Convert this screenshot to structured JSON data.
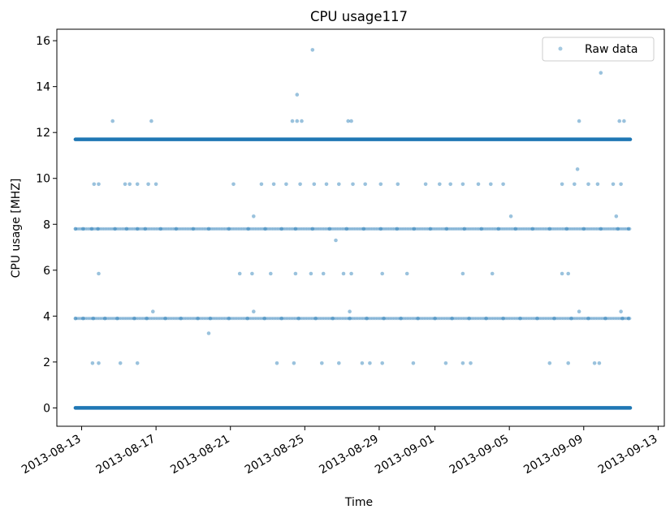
{
  "chart_data": {
    "type": "scatter",
    "title": "CPU usage117",
    "xlabel": "Time",
    "ylabel": "CPU usage [MHZ]",
    "x_range": [
      "2013-08-11T16:00",
      "2013-09-13T08:00"
    ],
    "x_data_range": [
      "2013-08-12T16:00",
      "2013-09-11T12:00"
    ],
    "ylim": [
      -0.8,
      16.5
    ],
    "x_ticks": [
      "2013-08-13",
      "2013-08-17",
      "2013-08-21",
      "2013-08-25",
      "2013-08-29",
      "2013-09-01",
      "2013-09-05",
      "2013-09-09",
      "2013-09-13"
    ],
    "y_ticks": [
      0,
      2,
      4,
      6,
      8,
      10,
      12,
      14,
      16
    ],
    "grid": false,
    "legend": {
      "position": "top-right",
      "entries": [
        "Raw data"
      ]
    },
    "marker_color": "#1f77b4",
    "series": [
      {
        "name": "Raw data",
        "dense_levels": [
          0,
          11.7
        ],
        "frequent_levels": [
          3.9,
          7.8
        ],
        "points": [
          [
            "2013-08-12T16:00",
            7.8
          ],
          [
            "2013-08-13T02:00",
            7.8
          ],
          [
            "2013-08-13T13:00",
            7.8
          ],
          [
            "2013-08-13T21:00",
            7.8
          ],
          [
            "2013-08-14T19:00",
            7.8
          ],
          [
            "2013-08-15T10:00",
            7.8
          ],
          [
            "2013-08-16T00:00",
            7.8
          ],
          [
            "2013-08-16T10:00",
            7.8
          ],
          [
            "2013-08-17T06:00",
            7.8
          ],
          [
            "2013-08-18T02:00",
            7.8
          ],
          [
            "2013-08-19T00:00",
            7.8
          ],
          [
            "2013-08-19T20:00",
            7.8
          ],
          [
            "2013-08-20T22:00",
            7.8
          ],
          [
            "2013-08-21T23:00",
            7.8
          ],
          [
            "2013-08-22T21:00",
            7.8
          ],
          [
            "2013-08-23T18:00",
            7.8
          ],
          [
            "2013-08-24T12:00",
            7.8
          ],
          [
            "2013-08-25T10:00",
            7.8
          ],
          [
            "2013-08-26T08:00",
            7.8
          ],
          [
            "2013-08-27T06:00",
            7.8
          ],
          [
            "2013-08-28T04:00",
            7.8
          ],
          [
            "2013-08-29T02:00",
            7.8
          ],
          [
            "2013-08-29T23:00",
            7.8
          ],
          [
            "2013-08-30T21:00",
            7.8
          ],
          [
            "2013-08-31T18:00",
            7.8
          ],
          [
            "2013-09-01T15:00",
            7.8
          ],
          [
            "2013-09-02T14:00",
            7.8
          ],
          [
            "2013-09-03T12:00",
            7.8
          ],
          [
            "2013-09-04T10:00",
            7.8
          ],
          [
            "2013-09-05T08:00",
            7.8
          ],
          [
            "2013-09-06T06:00",
            7.8
          ],
          [
            "2013-09-07T04:00",
            7.8
          ],
          [
            "2013-09-08T02:00",
            7.8
          ],
          [
            "2013-09-09T00:00",
            7.8
          ],
          [
            "2013-09-09T22:00",
            7.8
          ],
          [
            "2013-09-10T20:00",
            7.8
          ],
          [
            "2013-09-11T10:00",
            7.8
          ],
          [
            "2013-08-12T16:00",
            3.9
          ],
          [
            "2013-08-13T02:00",
            3.9
          ],
          [
            "2013-08-13T15:00",
            3.9
          ],
          [
            "2013-08-14T06:00",
            3.9
          ],
          [
            "2013-08-14T22:00",
            3.9
          ],
          [
            "2013-08-15T20:00",
            3.9
          ],
          [
            "2013-08-16T12:00",
            3.9
          ],
          [
            "2013-08-17T12:00",
            3.9
          ],
          [
            "2013-08-18T08:00",
            3.9
          ],
          [
            "2013-08-19T06:00",
            3.9
          ],
          [
            "2013-08-19T22:00",
            3.9
          ],
          [
            "2013-08-20T22:00",
            3.9
          ],
          [
            "2013-08-21T22:00",
            3.9
          ],
          [
            "2013-08-22T20:00",
            3.9
          ],
          [
            "2013-08-23T18:00",
            3.9
          ],
          [
            "2013-08-24T16:00",
            3.9
          ],
          [
            "2013-08-25T14:00",
            3.9
          ],
          [
            "2013-08-26T12:00",
            3.9
          ],
          [
            "2013-08-27T10:00",
            3.9
          ],
          [
            "2013-08-28T08:00",
            3.9
          ],
          [
            "2013-08-29T06:00",
            3.9
          ],
          [
            "2013-08-30T04:00",
            3.9
          ],
          [
            "2013-08-31T02:00",
            3.9
          ],
          [
            "2013-09-01T00:00",
            3.9
          ],
          [
            "2013-09-01T22:00",
            3.9
          ],
          [
            "2013-09-02T20:00",
            3.9
          ],
          [
            "2013-09-03T18:00",
            3.9
          ],
          [
            "2013-09-04T16:00",
            3.9
          ],
          [
            "2013-09-05T14:00",
            3.9
          ],
          [
            "2013-09-06T12:00",
            3.9
          ],
          [
            "2013-09-07T10:00",
            3.9
          ],
          [
            "2013-09-08T08:00",
            3.9
          ],
          [
            "2013-09-09T06:00",
            3.9
          ],
          [
            "2013-09-10T04:00",
            3.9
          ],
          [
            "2013-09-11T02:00",
            3.9
          ],
          [
            "2013-09-11T10:00",
            3.9
          ],
          [
            "2013-08-13T16:00",
            9.75
          ],
          [
            "2013-08-13T22:00",
            9.75
          ],
          [
            "2013-08-15T08:00",
            9.75
          ],
          [
            "2013-08-15T14:00",
            9.75
          ],
          [
            "2013-08-16T00:00",
            9.75
          ],
          [
            "2013-08-16T14:00",
            9.75
          ],
          [
            "2013-08-17T00:00",
            9.75
          ],
          [
            "2013-08-21T04:00",
            9.75
          ],
          [
            "2013-08-22T16:00",
            9.75
          ],
          [
            "2013-08-23T08:00",
            9.75
          ],
          [
            "2013-08-24T00:00",
            9.75
          ],
          [
            "2013-08-24T18:00",
            9.75
          ],
          [
            "2013-08-25T12:00",
            9.75
          ],
          [
            "2013-08-26T04:00",
            9.75
          ],
          [
            "2013-08-26T20:00",
            9.75
          ],
          [
            "2013-08-27T14:00",
            9.75
          ],
          [
            "2013-08-28T06:00",
            9.75
          ],
          [
            "2013-08-29T02:00",
            9.75
          ],
          [
            "2013-08-30T00:00",
            9.75
          ],
          [
            "2013-08-31T12:00",
            9.75
          ],
          [
            "2013-09-01T06:00",
            9.75
          ],
          [
            "2013-09-01T20:00",
            9.75
          ],
          [
            "2013-09-02T12:00",
            9.75
          ],
          [
            "2013-09-03T08:00",
            9.75
          ],
          [
            "2013-09-04T00:00",
            9.75
          ],
          [
            "2013-09-04T16:00",
            9.75
          ],
          [
            "2013-09-07T20:00",
            9.75
          ],
          [
            "2013-09-08T12:00",
            9.75
          ],
          [
            "2013-09-09T06:00",
            9.75
          ],
          [
            "2013-09-09T18:00",
            9.75
          ],
          [
            "2013-09-10T14:00",
            9.75
          ],
          [
            "2013-09-11T00:00",
            9.75
          ],
          [
            "2013-08-13T22:00",
            5.85
          ],
          [
            "2013-08-21T12:00",
            5.85
          ],
          [
            "2013-08-22T04:00",
            5.85
          ],
          [
            "2013-08-23T04:00",
            5.85
          ],
          [
            "2013-08-24T12:00",
            5.85
          ],
          [
            "2013-08-25T08:00",
            5.85
          ],
          [
            "2013-08-26T00:00",
            5.85
          ],
          [
            "2013-08-27T02:00",
            5.85
          ],
          [
            "2013-08-27T12:00",
            5.85
          ],
          [
            "2013-08-29T04:00",
            5.85
          ],
          [
            "2013-08-30T12:00",
            5.85
          ],
          [
            "2013-09-02T12:00",
            5.85
          ],
          [
            "2013-09-04T02:00",
            5.85
          ],
          [
            "2013-09-07T20:00",
            5.85
          ],
          [
            "2013-09-08T04:00",
            5.85
          ],
          [
            "2013-08-13T14:00",
            1.95
          ],
          [
            "2013-08-13T22:00",
            1.95
          ],
          [
            "2013-08-15T02:00",
            1.95
          ],
          [
            "2013-08-16T00:00",
            1.95
          ],
          [
            "2013-08-23T12:00",
            1.95
          ],
          [
            "2013-08-24T10:00",
            1.95
          ],
          [
            "2013-08-25T22:00",
            1.95
          ],
          [
            "2013-08-26T20:00",
            1.95
          ],
          [
            "2013-08-28T02:00",
            1.95
          ],
          [
            "2013-08-28T12:00",
            1.95
          ],
          [
            "2013-08-29T04:00",
            1.95
          ],
          [
            "2013-08-30T20:00",
            1.95
          ],
          [
            "2013-09-01T14:00",
            1.95
          ],
          [
            "2013-09-02T12:00",
            1.95
          ],
          [
            "2013-09-02T22:00",
            1.95
          ],
          [
            "2013-09-07T04:00",
            1.95
          ],
          [
            "2013-09-08T04:00",
            1.95
          ],
          [
            "2013-09-09T14:00",
            1.95
          ],
          [
            "2013-09-09T20:00",
            1.95
          ],
          [
            "2013-08-14T16:00",
            12.5
          ],
          [
            "2013-08-16T18:00",
            12.5
          ],
          [
            "2013-08-24T08:00",
            12.5
          ],
          [
            "2013-08-24T14:00",
            12.5
          ],
          [
            "2013-08-24T20:00",
            12.5
          ],
          [
            "2013-08-27T08:00",
            12.5
          ],
          [
            "2013-08-27T12:00",
            12.5
          ],
          [
            "2013-09-08T18:00",
            12.5
          ],
          [
            "2013-09-10T22:00",
            12.5
          ],
          [
            "2013-09-11T04:00",
            12.5
          ],
          [
            "2013-08-16T20:00",
            4.2
          ],
          [
            "2013-08-22T06:00",
            4.2
          ],
          [
            "2013-08-27T10:00",
            4.2
          ],
          [
            "2013-09-08T18:00",
            4.2
          ],
          [
            "2013-09-11T00:00",
            4.2
          ],
          [
            "2013-08-22T06:00",
            8.35
          ],
          [
            "2013-09-05T02:00",
            8.35
          ],
          [
            "2013-09-10T18:00",
            8.35
          ],
          [
            "2013-08-26T16:00",
            7.3
          ],
          [
            "2013-08-19T20:00",
            3.25
          ],
          [
            "2013-09-08T16:00",
            10.4
          ],
          [
            "2013-08-24T14:00",
            13.65
          ],
          [
            "2013-08-25T10:00",
            15.6
          ],
          [
            "2013-09-09T22:00",
            14.6
          ]
        ]
      }
    ]
  }
}
